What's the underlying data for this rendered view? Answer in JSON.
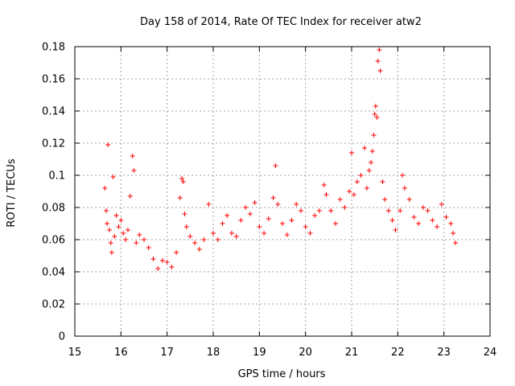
{
  "chart_data": {
    "type": "scatter",
    "title": "Day 158 of 2014, Rate Of TEC Index for receiver atw2",
    "xlabel": "GPS time / hours",
    "ylabel": "ROTI / TECUs",
    "xlim": [
      15,
      24
    ],
    "ylim": [
      0,
      0.18
    ],
    "x_ticks": [
      "15",
      "16",
      "17",
      "18",
      "19",
      "20",
      "21",
      "22",
      "23",
      "24"
    ],
    "y_ticks": [
      "0",
      "0.02",
      "0.04",
      "0.06",
      "0.08",
      "0.1",
      "0.12",
      "0.14",
      "0.16",
      "0.18"
    ],
    "grid": true,
    "marker": "+",
    "marker_color": "#ff0000",
    "series": [
      {
        "name": "ROTI",
        "points": [
          [
            15.65,
            0.092
          ],
          [
            15.68,
            0.078
          ],
          [
            15.7,
            0.07
          ],
          [
            15.72,
            0.119
          ],
          [
            15.75,
            0.066
          ],
          [
            15.78,
            0.058
          ],
          [
            15.8,
            0.052
          ],
          [
            15.83,
            0.099
          ],
          [
            15.86,
            0.062
          ],
          [
            15.9,
            0.075
          ],
          [
            15.95,
            0.068
          ],
          [
            16.0,
            0.072
          ],
          [
            16.05,
            0.064
          ],
          [
            16.1,
            0.06
          ],
          [
            16.15,
            0.066
          ],
          [
            16.2,
            0.087
          ],
          [
            16.25,
            0.112
          ],
          [
            16.28,
            0.103
          ],
          [
            16.33,
            0.058
          ],
          [
            16.4,
            0.063
          ],
          [
            16.5,
            0.06
          ],
          [
            16.6,
            0.055
          ],
          [
            16.7,
            0.048
          ],
          [
            16.8,
            0.042
          ],
          [
            16.9,
            0.047
          ],
          [
            17.0,
            0.046
          ],
          [
            17.1,
            0.043
          ],
          [
            17.2,
            0.052
          ],
          [
            17.28,
            0.086
          ],
          [
            17.32,
            0.098
          ],
          [
            17.35,
            0.096
          ],
          [
            17.38,
            0.076
          ],
          [
            17.42,
            0.068
          ],
          [
            17.5,
            0.062
          ],
          [
            17.6,
            0.058
          ],
          [
            17.7,
            0.054
          ],
          [
            17.8,
            0.06
          ],
          [
            17.9,
            0.082
          ],
          [
            18.0,
            0.064
          ],
          [
            18.1,
            0.06
          ],
          [
            18.2,
            0.07
          ],
          [
            18.3,
            0.075
          ],
          [
            18.4,
            0.064
          ],
          [
            18.5,
            0.062
          ],
          [
            18.6,
            0.072
          ],
          [
            18.7,
            0.08
          ],
          [
            18.8,
            0.076
          ],
          [
            18.9,
            0.083
          ],
          [
            19.0,
            0.068
          ],
          [
            19.1,
            0.064
          ],
          [
            19.2,
            0.073
          ],
          [
            19.3,
            0.086
          ],
          [
            19.35,
            0.106
          ],
          [
            19.4,
            0.082
          ],
          [
            19.5,
            0.07
          ],
          [
            19.6,
            0.063
          ],
          [
            19.7,
            0.072
          ],
          [
            19.8,
            0.082
          ],
          [
            19.9,
            0.078
          ],
          [
            20.0,
            0.068
          ],
          [
            20.1,
            0.064
          ],
          [
            20.2,
            0.075
          ],
          [
            20.3,
            0.078
          ],
          [
            20.4,
            0.094
          ],
          [
            20.45,
            0.088
          ],
          [
            20.55,
            0.078
          ],
          [
            20.65,
            0.07
          ],
          [
            20.75,
            0.085
          ],
          [
            20.85,
            0.08
          ],
          [
            20.95,
            0.09
          ],
          [
            21.0,
            0.114
          ],
          [
            21.05,
            0.088
          ],
          [
            21.12,
            0.096
          ],
          [
            21.2,
            0.1
          ],
          [
            21.28,
            0.117
          ],
          [
            21.33,
            0.092
          ],
          [
            21.38,
            0.103
          ],
          [
            21.42,
            0.108
          ],
          [
            21.45,
            0.115
          ],
          [
            21.48,
            0.125
          ],
          [
            21.5,
            0.138
          ],
          [
            21.52,
            0.143
          ],
          [
            21.55,
            0.136
          ],
          [
            21.57,
            0.171
          ],
          [
            21.6,
            0.178
          ],
          [
            21.62,
            0.165
          ],
          [
            21.67,
            0.096
          ],
          [
            21.72,
            0.085
          ],
          [
            21.8,
            0.078
          ],
          [
            21.88,
            0.072
          ],
          [
            21.95,
            0.066
          ],
          [
            22.05,
            0.078
          ],
          [
            22.1,
            0.1
          ],
          [
            22.15,
            0.092
          ],
          [
            22.25,
            0.085
          ],
          [
            22.35,
            0.074
          ],
          [
            22.45,
            0.07
          ],
          [
            22.55,
            0.08
          ],
          [
            22.65,
            0.078
          ],
          [
            22.75,
            0.072
          ],
          [
            22.85,
            0.068
          ],
          [
            22.95,
            0.082
          ],
          [
            23.05,
            0.074
          ],
          [
            23.15,
            0.07
          ],
          [
            23.2,
            0.064
          ],
          [
            23.25,
            0.058
          ]
        ]
      }
    ]
  }
}
